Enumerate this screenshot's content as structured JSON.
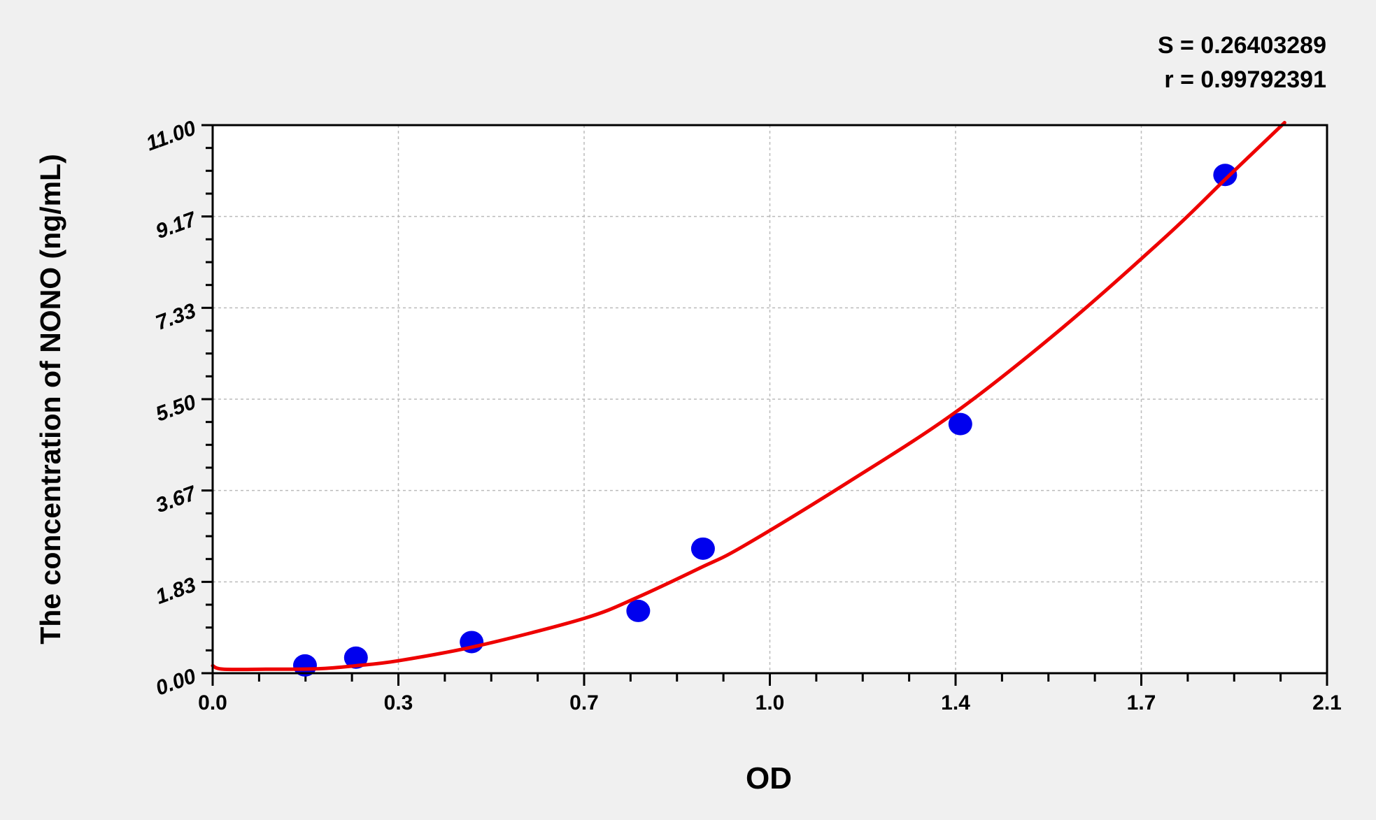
{
  "chart_data": {
    "type": "scatter",
    "title": "",
    "xlabel": "OD",
    "ylabel": "The concentration of NONO (ng/mL)",
    "xlim": [
      0,
      2.1
    ],
    "ylim": [
      0,
      11
    ],
    "x_ticks": [
      0,
      0.35,
      0.7,
      1.05,
      1.4,
      1.75,
      2.1
    ],
    "x_tick_labels": [
      "0.0",
      "0.3",
      "0.7",
      "1.0",
      "1.4",
      "1.7",
      "2.1"
    ],
    "y_ticks": [
      0,
      1.833,
      3.667,
      5.5,
      7.333,
      9.167,
      11
    ],
    "y_tick_labels": [
      "0.00",
      "1.83",
      "3.67",
      "5.50",
      "7.33",
      "9.17",
      "11.00"
    ],
    "grid": true,
    "annotations": [
      "S = 0.26403289",
      "r = 0.99792391"
    ],
    "colors": {
      "points": "#0000ee",
      "fit_line": "#ee0000",
      "background": "#f0f0f0",
      "plot_area": "#ffffff"
    },
    "series": [
      {
        "type": "scatter",
        "x": [
          0.174,
          0.27,
          0.488,
          0.802,
          0.924,
          1.409,
          1.908
        ],
        "y": [
          0.156,
          0.312,
          0.625,
          1.25,
          2.5,
          5,
          10
        ]
      },
      {
        "type": "line",
        "x": [
          0,
          0.02,
          0.1,
          0.2,
          0.27,
          0.35,
          0.5,
          0.7,
          0.8,
          0.92,
          1.0,
          1.2,
          1.4,
          1.6,
          1.8,
          1.908,
          2.02
        ],
        "y": [
          0.15,
          0.08,
          0.08,
          0.09,
          0.15,
          0.25,
          0.55,
          1.1,
          1.52,
          2.12,
          2.55,
          3.85,
          5.24,
          6.92,
          8.8,
          9.91,
          11.05
        ]
      }
    ]
  }
}
